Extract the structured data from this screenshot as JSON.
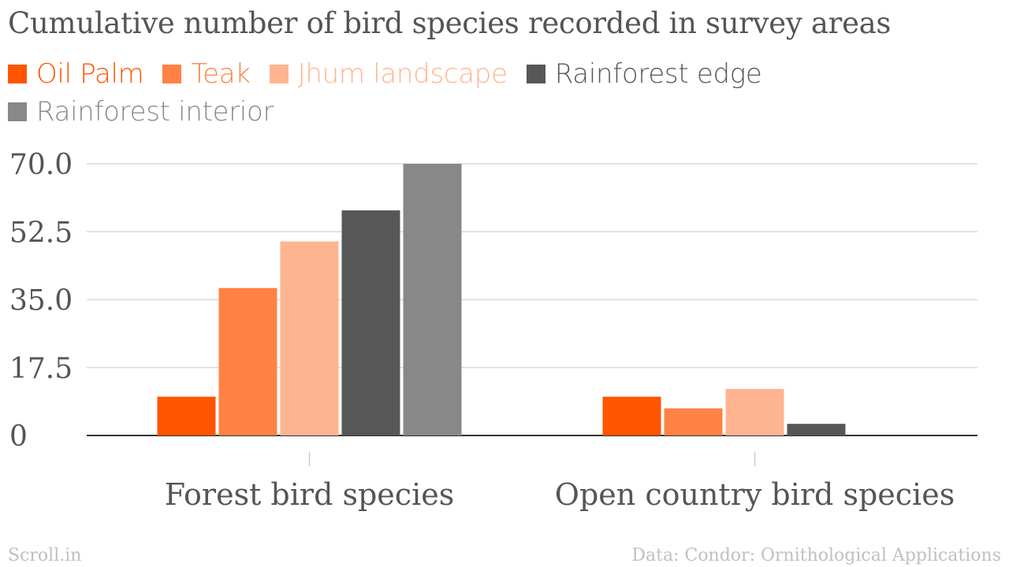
{
  "chart_data": {
    "type": "bar",
    "title": "Cumulative number of bird species recorded in survey areas",
    "categories": [
      "Forest bird species",
      "Open country bird species"
    ],
    "series": [
      {
        "name": "Oil Palm",
        "color": "#ff5500",
        "values": [
          10,
          10
        ]
      },
      {
        "name": "Teak",
        "color": "#ff8244",
        "values": [
          38,
          7
        ]
      },
      {
        "name": "Jhum landscape",
        "color": "#ffb491",
        "values": [
          50,
          12
        ]
      },
      {
        "name": "Rainforest edge",
        "color": "#575757",
        "values": [
          58,
          3
        ]
      },
      {
        "name": "Rainforest interior",
        "color": "#888888",
        "values": [
          70,
          0
        ]
      }
    ],
    "yticks": [
      "0",
      "17.5",
      "35.0",
      "52.5",
      "70.0"
    ],
    "ylim": [
      0,
      70
    ],
    "grid": true,
    "legend_position": "top-left",
    "xlabel": "",
    "ylabel": ""
  },
  "footer": {
    "source_left": "Scroll.in",
    "source_right": "Data: Condor: Ornithological Applications"
  }
}
